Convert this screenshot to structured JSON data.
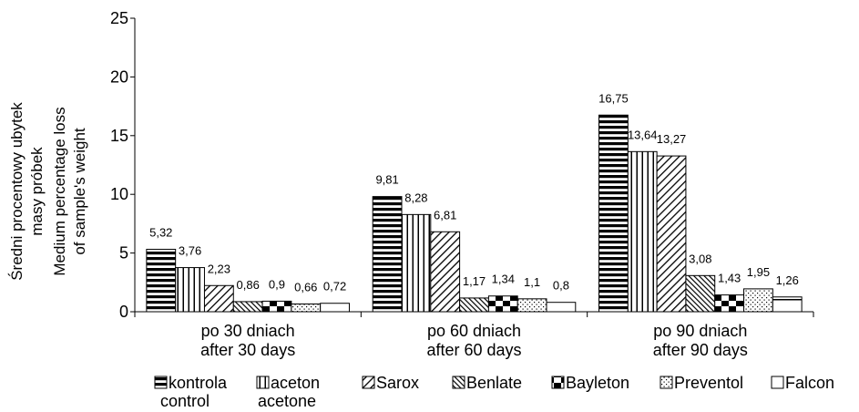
{
  "chart_data": {
    "type": "bar",
    "ylabel_lines": [
      "Średni procentowy ubytek",
      "masy próbek",
      "Medium percentage loss",
      "of sample's weight"
    ],
    "xlabel": "",
    "ylim": [
      0,
      25
    ],
    "yticks": [
      0,
      5,
      10,
      15,
      20,
      25
    ],
    "categories": [
      [
        "po 30 dniach",
        "after 30 days"
      ],
      [
        "po 60 dniach",
        "after 60 days"
      ],
      [
        "po 90 dniach",
        "after 90 days"
      ]
    ],
    "series": [
      {
        "name": [
          "kontrola",
          "control"
        ],
        "pattern": "hstripes",
        "values": [
          5.32,
          9.81,
          16.75
        ],
        "labels": [
          "5,32",
          "9,81",
          "16,75"
        ]
      },
      {
        "name": [
          "aceton",
          "acetone"
        ],
        "pattern": "vstripes",
        "values": [
          3.76,
          8.28,
          13.64
        ],
        "labels": [
          "3,76",
          "8,28",
          "13,64"
        ]
      },
      {
        "name": [
          "Sarox"
        ],
        "pattern": "diag",
        "values": [
          2.23,
          6.81,
          13.27
        ],
        "labels": [
          "2,23",
          "6,81",
          "13,27"
        ]
      },
      {
        "name": [
          "Benlate"
        ],
        "pattern": "diagdense",
        "values": [
          0.86,
          1.17,
          3.08
        ],
        "labels": [
          "0,86",
          "1,17",
          "3,08"
        ]
      },
      {
        "name": [
          "Bayleton"
        ],
        "pattern": "checker",
        "values": [
          0.9,
          1.34,
          1.43
        ],
        "labels": [
          "0,9",
          "1,34",
          "1,43"
        ]
      },
      {
        "name": [
          "Preventol"
        ],
        "pattern": "dots",
        "values": [
          0.66,
          1.1,
          1.95
        ],
        "labels": [
          "0,66",
          "1,1",
          "1,95"
        ]
      },
      {
        "name": [
          "Falcon"
        ],
        "pattern": "falcon",
        "values": [
          0.72,
          0.8,
          1.26
        ],
        "labels": [
          "0,72",
          "0,8",
          "1,26"
        ]
      }
    ],
    "grid": false,
    "legend_position": "bottom"
  }
}
